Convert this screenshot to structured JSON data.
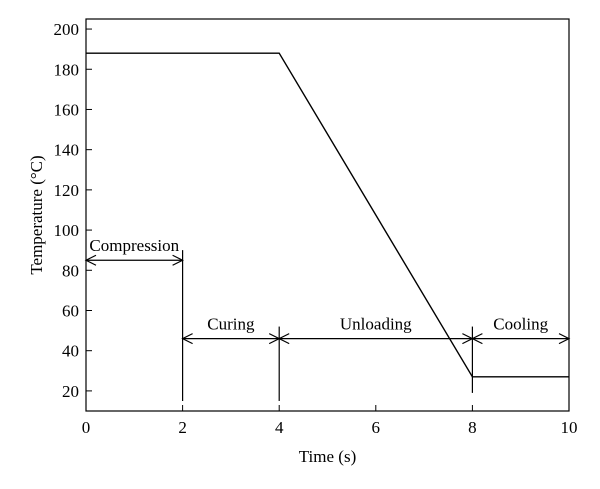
{
  "chart_data": {
    "type": "line",
    "xlabel": "Time (s)",
    "ylabel": "Temperature (°C)",
    "xlim": [
      0,
      10
    ],
    "ylim": [
      10,
      205
    ],
    "x_ticks": [
      0,
      2,
      4,
      6,
      8,
      10
    ],
    "y_ticks": [
      20,
      40,
      60,
      80,
      100,
      120,
      140,
      160,
      180,
      200
    ],
    "grid": false,
    "legend": "none",
    "series": [
      {
        "points": [
          {
            "x": 0,
            "y": 188
          },
          {
            "x": 4,
            "y": 188
          },
          {
            "x": 8,
            "y": 27
          },
          {
            "x": 10,
            "y": 27
          }
        ]
      }
    ],
    "phase_markers": [
      {
        "x": 2,
        "y_from": 15,
        "y_to": 90
      },
      {
        "x": 4,
        "y_from": 15,
        "y_to": 52
      },
      {
        "x": 8,
        "y_from": 19,
        "y_to": 52
      }
    ],
    "phases": [
      {
        "label": "Compression",
        "x_start": 0,
        "x_end": 2,
        "arrow_y": 85
      },
      {
        "label": "Curing",
        "x_start": 2,
        "x_end": 4,
        "arrow_y": 46
      },
      {
        "label": "Unloading",
        "x_start": 4,
        "x_end": 8,
        "arrow_y": 46
      },
      {
        "label": "Cooling",
        "x_start": 8,
        "x_end": 10,
        "arrow_y": 46
      }
    ],
    "colors": {
      "line": "#000000",
      "axis": "#000000",
      "background": "#ffffff"
    }
  }
}
